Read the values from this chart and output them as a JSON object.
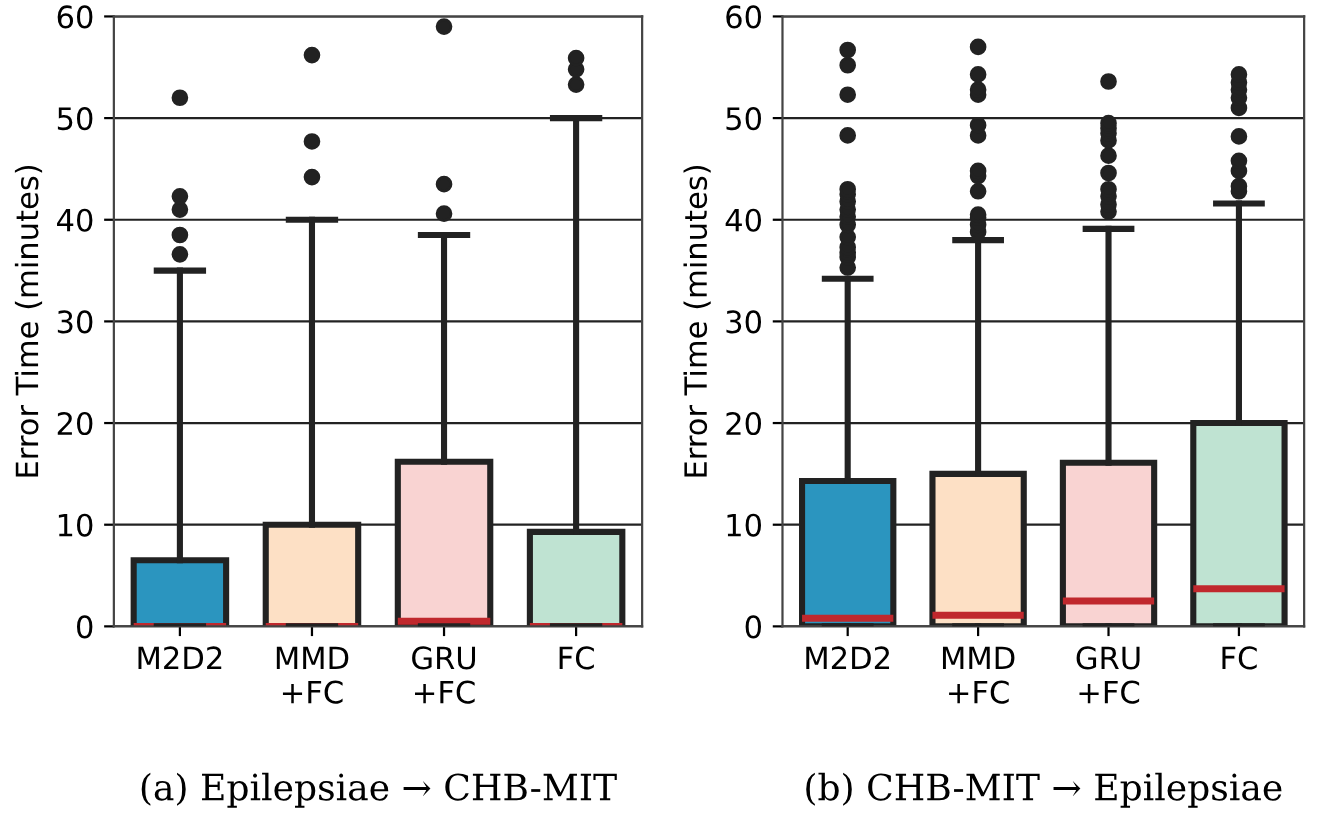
{
  "chart_data": [
    {
      "type": "box",
      "ylabel": "Error Time (minutes)",
      "categories": [
        "M2D2",
        "MMD\n+FC",
        "GRU\n+FC",
        "FC"
      ],
      "colors": [
        "#2b95bf",
        "#fde0c5",
        "#f9d3d2",
        "#bfe3d2"
      ],
      "ylim": [
        0,
        60
      ],
      "yticks": [
        0,
        10,
        20,
        30,
        40,
        50,
        60
      ],
      "grid": "y",
      "annotations": [
        "(a) Epilepsiae → CHB-MIT"
      ],
      "boxes": [
        {
          "low": 0,
          "q1": 0,
          "median": 0,
          "q3": 6.5,
          "high": 35,
          "outliers": [
            36.6,
            38.5,
            41.0,
            42.3,
            52.0
          ]
        },
        {
          "low": 0,
          "q1": 0,
          "median": 0,
          "q3": 10,
          "high": 40,
          "outliers": [
            44.2,
            47.7,
            56.2
          ]
        },
        {
          "low": 0,
          "q1": 0,
          "median": 0.5,
          "q3": 16.2,
          "high": 38.5,
          "outliers": [
            40.6,
            43.5,
            59.0
          ]
        },
        {
          "low": 0,
          "q1": 0,
          "median": 0,
          "q3": 9.3,
          "high": 50,
          "outliers": [
            53.3,
            54.8,
            55.9
          ]
        }
      ]
    },
    {
      "type": "box",
      "ylabel": "Error Time (minutes)",
      "categories": [
        "M2D2",
        "MMD\n+FC",
        "GRU\n+FC",
        "FC"
      ],
      "colors": [
        "#2b95bf",
        "#fde0c5",
        "#f9d3d2",
        "#bfe3d2"
      ],
      "ylim": [
        0,
        60
      ],
      "yticks": [
        0,
        10,
        20,
        30,
        40,
        50,
        60
      ],
      "grid": "y",
      "annotations": [
        "(b) CHB-MIT → Epilepsiae"
      ],
      "boxes": [
        {
          "low": 0,
          "q1": 0,
          "median": 0.8,
          "q3": 14.3,
          "high": 34.2,
          "outliers": [
            35.3,
            36.3,
            36.8,
            37.3,
            38.3,
            39.5,
            40.3,
            41.0,
            41.8,
            42.5,
            43.0,
            48.3,
            52.3,
            55.2,
            56.7
          ]
        },
        {
          "low": 0,
          "q1": 0,
          "median": 1.1,
          "q3": 15,
          "high": 38,
          "outliers": [
            38.8,
            39.5,
            40.2,
            40.5,
            42.8,
            44.3,
            44.8,
            48.3,
            49.3,
            52.3,
            52.8,
            54.3,
            57.0
          ]
        },
        {
          "low": 0,
          "q1": 0,
          "median": 2.5,
          "q3": 16.1,
          "high": 39.1,
          "outliers": [
            40.8,
            41.5,
            42.3,
            43.0,
            44.6,
            46.3,
            47.8,
            48.5,
            49.0,
            49.5,
            53.6
          ]
        },
        {
          "low": 0,
          "q1": 0,
          "median": 3.7,
          "q3": 20,
          "high": 41.6,
          "outliers": [
            42.8,
            43.3,
            44.8,
            45.8,
            48.2,
            51.0,
            52.0,
            52.8,
            53.5,
            54.3
          ]
        }
      ]
    }
  ]
}
